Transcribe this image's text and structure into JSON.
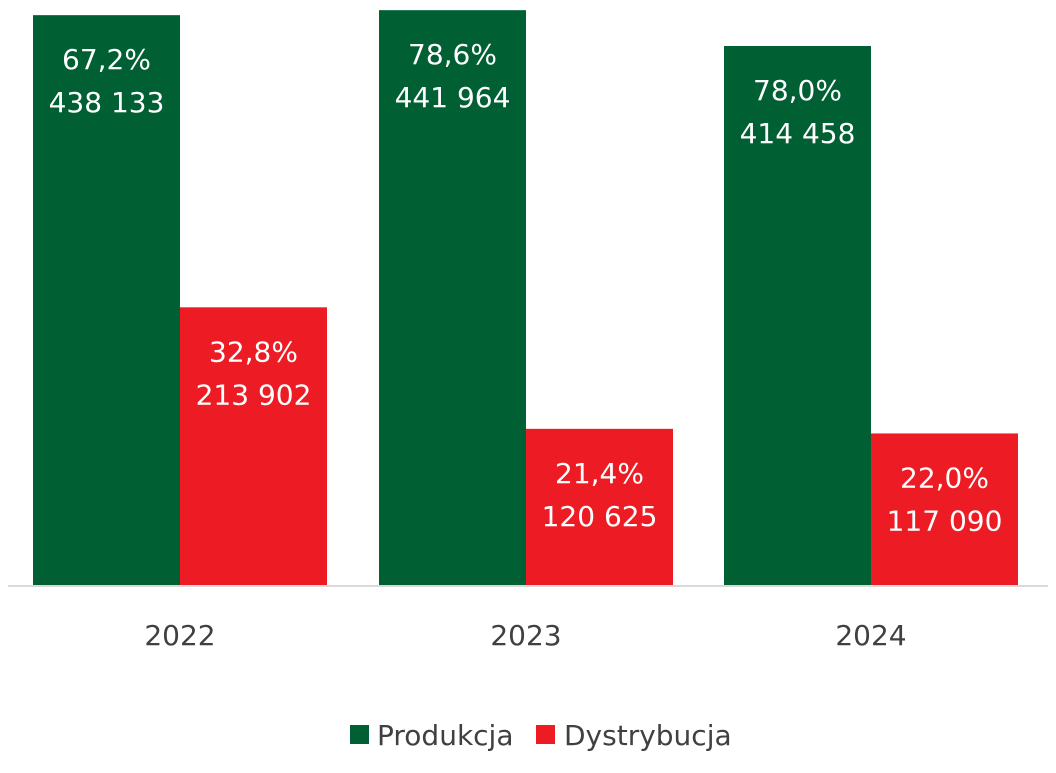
{
  "chart_data": {
    "type": "bar",
    "categories": [
      "2022",
      "2023",
      "2024"
    ],
    "series": [
      {
        "name": "Produkcja",
        "color": "#005f33",
        "values": [
          438133,
          441964,
          414458
        ],
        "value_labels": [
          "438 133",
          "441 964",
          "414 458"
        ],
        "percent_labels": [
          "67,2%",
          "78,6%",
          "78,0%"
        ]
      },
      {
        "name": "Dystrybucja",
        "color": "#ed1c24",
        "values": [
          213902,
          120625,
          117090
        ],
        "value_labels": [
          "213 902",
          "120 625",
          "117 090"
        ],
        "percent_labels": [
          "32,8%",
          "21,4%",
          "22,0%"
        ]
      }
    ],
    "ylim": [
      0,
      449000
    ],
    "grid": false,
    "legend_position": "bottom",
    "axis_color": "#d9d9d9",
    "text_color": "#404040",
    "label_color": "#ffffff"
  }
}
